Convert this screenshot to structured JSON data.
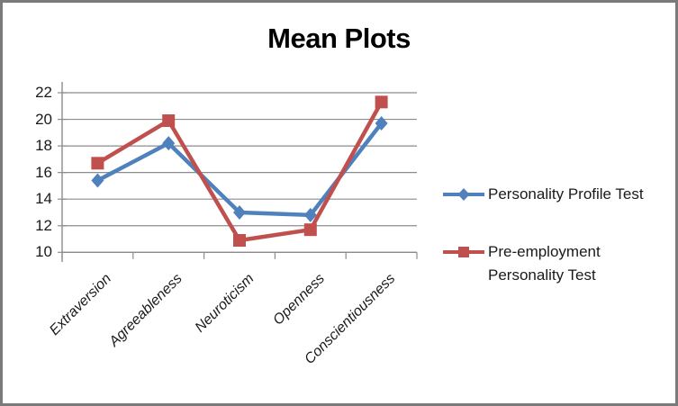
{
  "frame": {
    "background": "#ffffff",
    "border_color": "#7a7a7a"
  },
  "chart_data": {
    "type": "line",
    "title": "Mean Plots",
    "categories": [
      "Extraversion",
      "Agreeableness",
      "Neuroticism",
      "Openness",
      "Conscientiousness"
    ],
    "series": [
      {
        "name": "Personality Profile Test",
        "color": "#4F81BD",
        "marker": "diamond",
        "values": [
          15.4,
          18.2,
          13.0,
          12.8,
          19.7
        ]
      },
      {
        "name": "Pre-employment Personality Test",
        "color": "#C0504D",
        "marker": "square",
        "values": [
          16.7,
          19.9,
          10.9,
          11.7,
          21.3
        ]
      }
    ],
    "ylim": [
      10,
      22
    ],
    "yticks": [
      10,
      12,
      14,
      16,
      18,
      20,
      22
    ],
    "grid": true,
    "legend_position": "right",
    "legend_entries": [
      {
        "series": "Personality Profile Test",
        "lines": [
          "Personality Profile Test"
        ],
        "marker": "diamond",
        "color": "#4F81BD"
      },
      {
        "series": "Pre-employment Personality Test",
        "lines": [
          "Pre-employment",
          "Personality Test"
        ],
        "marker": "square",
        "color": "#C0504D"
      }
    ],
    "styles": {
      "gridline_color": "#8c8c8c",
      "axis_color": "#8c8c8c",
      "tick_color": "#8c8c8c",
      "text_color": "#1a1a1a",
      "title_color": "#000000"
    }
  }
}
